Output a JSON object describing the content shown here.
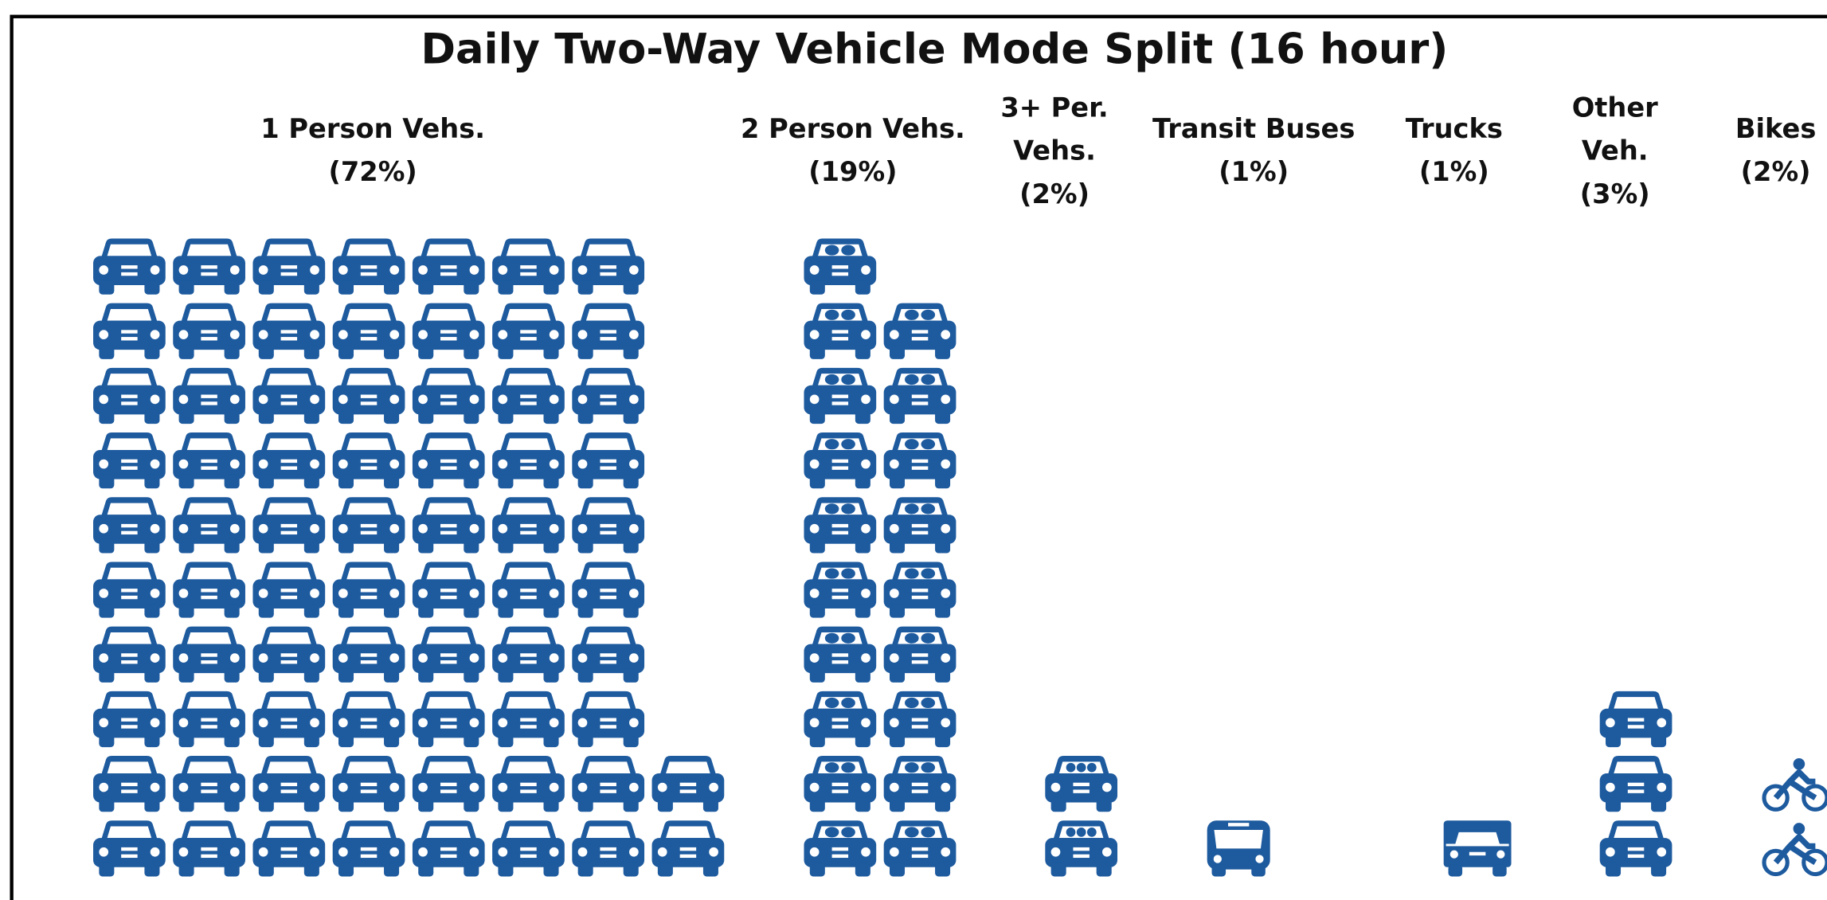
{
  "chart_data": {
    "type": "pictograph",
    "title": "Daily Two-Way Vehicle Mode Split (16 hour)",
    "categories": [
      "1 Person Vehs.",
      "2 Person Vehs.",
      "3+ Per. Vehs.",
      "Transit Buses",
      "Trucks",
      "Other Veh.",
      "Bikes"
    ],
    "values": [
      72,
      19,
      2,
      1,
      1,
      3,
      2
    ],
    "value_labels": [
      "(72%)",
      "(19%)",
      "(2%)",
      "(1%)",
      "(1%)",
      "(3%)",
      "(2%)"
    ],
    "color": "#1d5a9e"
  }
}
